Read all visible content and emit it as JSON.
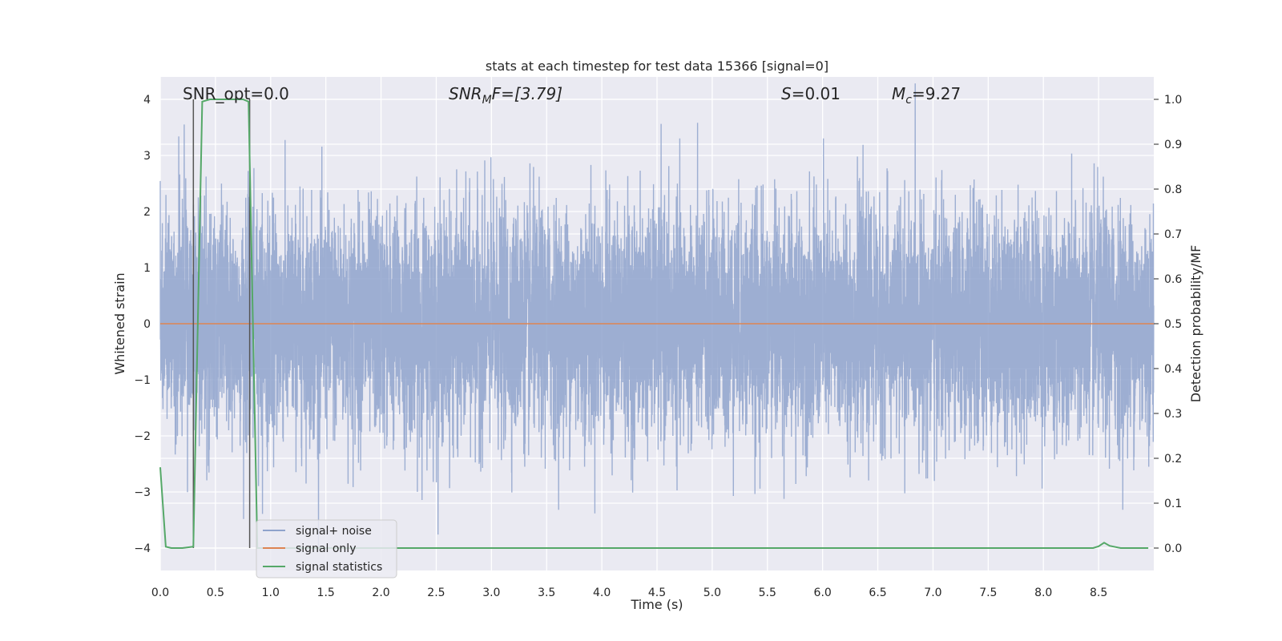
{
  "chart_data": {
    "type": "line",
    "title": "stats at each timestep for test data 15366 [signal=0]",
    "xlabel": "Time (s)",
    "ylabel": "Whitened strain",
    "y2label": "Detection probability/MF",
    "xlim": [
      0,
      9
    ],
    "ylim": [
      -4.4,
      4.4
    ],
    "y2lim": [
      -0.05,
      1.05
    ],
    "xticks": [
      "0.0",
      "0.5",
      "1.0",
      "1.5",
      "2.0",
      "2.5",
      "3.0",
      "3.5",
      "4.0",
      "4.5",
      "5.0",
      "5.5",
      "6.0",
      "6.5",
      "7.0",
      "7.5",
      "8.0",
      "8.5"
    ],
    "yticks": [
      "4",
      "3",
      "2",
      "1",
      "0",
      "−1",
      "−2",
      "−3",
      "−4"
    ],
    "y2ticks": [
      "1.0",
      "0.9",
      "0.8",
      "0.7",
      "0.6",
      "0.5",
      "0.4",
      "0.3",
      "0.2",
      "0.1",
      "0.0"
    ],
    "grid": true,
    "legend_position": "lower-left",
    "annotations": {
      "snr_opt": "SNR_opt=0.0",
      "snr_mf_prefix": "SNR",
      "snr_mf_sub": "M",
      "snr_mf_suffix": "F=[3.79]",
      "s_symbol": "S",
      "s_value": "=0.01",
      "mc_symbol": "M",
      "mc_sub": "c",
      "mc_value": "=9.27"
    },
    "vlines": [
      0.3,
      0.81
    ],
    "series": [
      {
        "name": "signal+ noise",
        "color": "#8fa3cc",
        "kind": "noise",
        "sample_rate_hz": 1024,
        "duration_s": 9,
        "std": 1.0
      },
      {
        "name": "signal only",
        "color": "#dd8452",
        "kind": "constant",
        "value": 0.0
      },
      {
        "name": "signal statistics",
        "color": "#55a868",
        "axis": "right",
        "x": [
          0.0,
          0.05,
          0.1,
          0.2,
          0.3,
          0.38,
          0.45,
          0.6,
          0.75,
          0.8,
          0.88,
          0.95,
          1.0,
          2.0,
          3.0,
          4.0,
          5.0,
          6.0,
          7.0,
          8.0,
          8.45,
          8.5,
          8.55,
          8.6,
          8.7,
          8.8,
          8.95
        ],
        "values": [
          0.18,
          0.003,
          0.0,
          0.0,
          0.003,
          0.995,
          1.0,
          1.0,
          1.0,
          0.995,
          0.0,
          0.0,
          0.0,
          0.0,
          0.0,
          0.0,
          0.0,
          0.0,
          0.0,
          0.0,
          0.0,
          0.004,
          0.012,
          0.005,
          0.0,
          0.0,
          0.0
        ]
      }
    ]
  }
}
